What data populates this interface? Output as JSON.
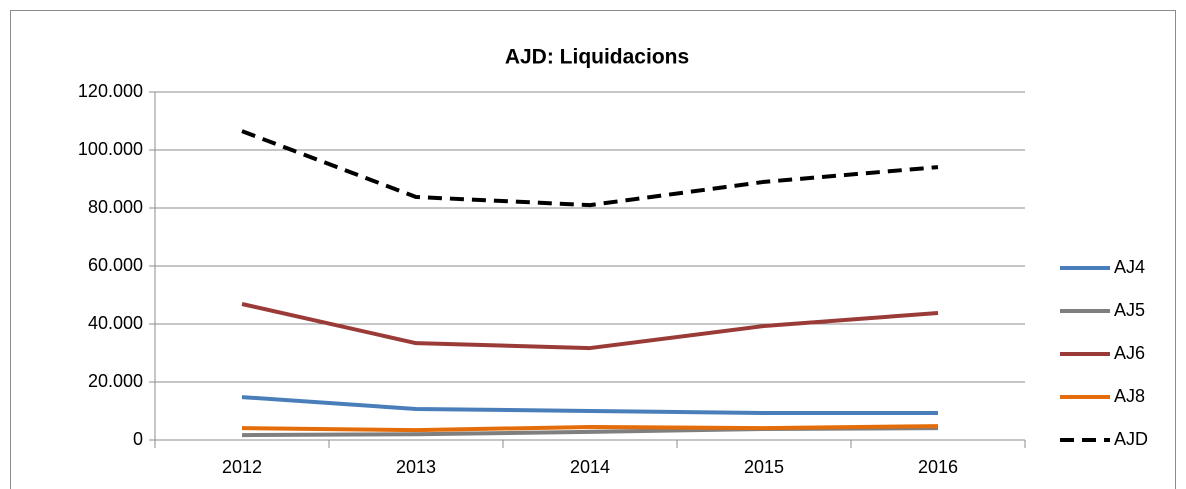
{
  "chart_data": {
    "type": "line",
    "title": "AJD: Liquidacions",
    "categories": [
      "2012",
      "2013",
      "2014",
      "2015",
      "2016"
    ],
    "series": [
      {
        "name": "AJ4",
        "color": "#4a7ebb",
        "values": [
          14800,
          10700,
          10000,
          9300,
          9300
        ]
      },
      {
        "name": "AJ5",
        "color": "#7f7f7f",
        "values": [
          1700,
          2000,
          2800,
          3800,
          4100
        ]
      },
      {
        "name": "AJ6",
        "color": "#9b3b38",
        "values": [
          46900,
          33400,
          31700,
          39300,
          43800
        ]
      },
      {
        "name": "AJ8",
        "color": "#e46c0a",
        "values": [
          4100,
          3400,
          4500,
          4100,
          4800
        ]
      },
      {
        "name": "AJD",
        "color": "#000000",
        "dashed": true,
        "values": [
          106500,
          83800,
          81000,
          89000,
          94100
        ]
      }
    ],
    "ylim": [
      0,
      120000
    ],
    "yticks": [
      0,
      {
        "value": 20000,
        "label": "20.000"
      },
      {
        "value": 40000,
        "label": "40.000"
      },
      {
        "value": 60000,
        "label": "60.000"
      },
      {
        "value": 80000,
        "label": "80.000"
      },
      {
        "value": 100000,
        "label": "100.000"
      },
      {
        "value": 120000,
        "label": "120.000"
      }
    ],
    "grid": true,
    "legend": "right"
  }
}
